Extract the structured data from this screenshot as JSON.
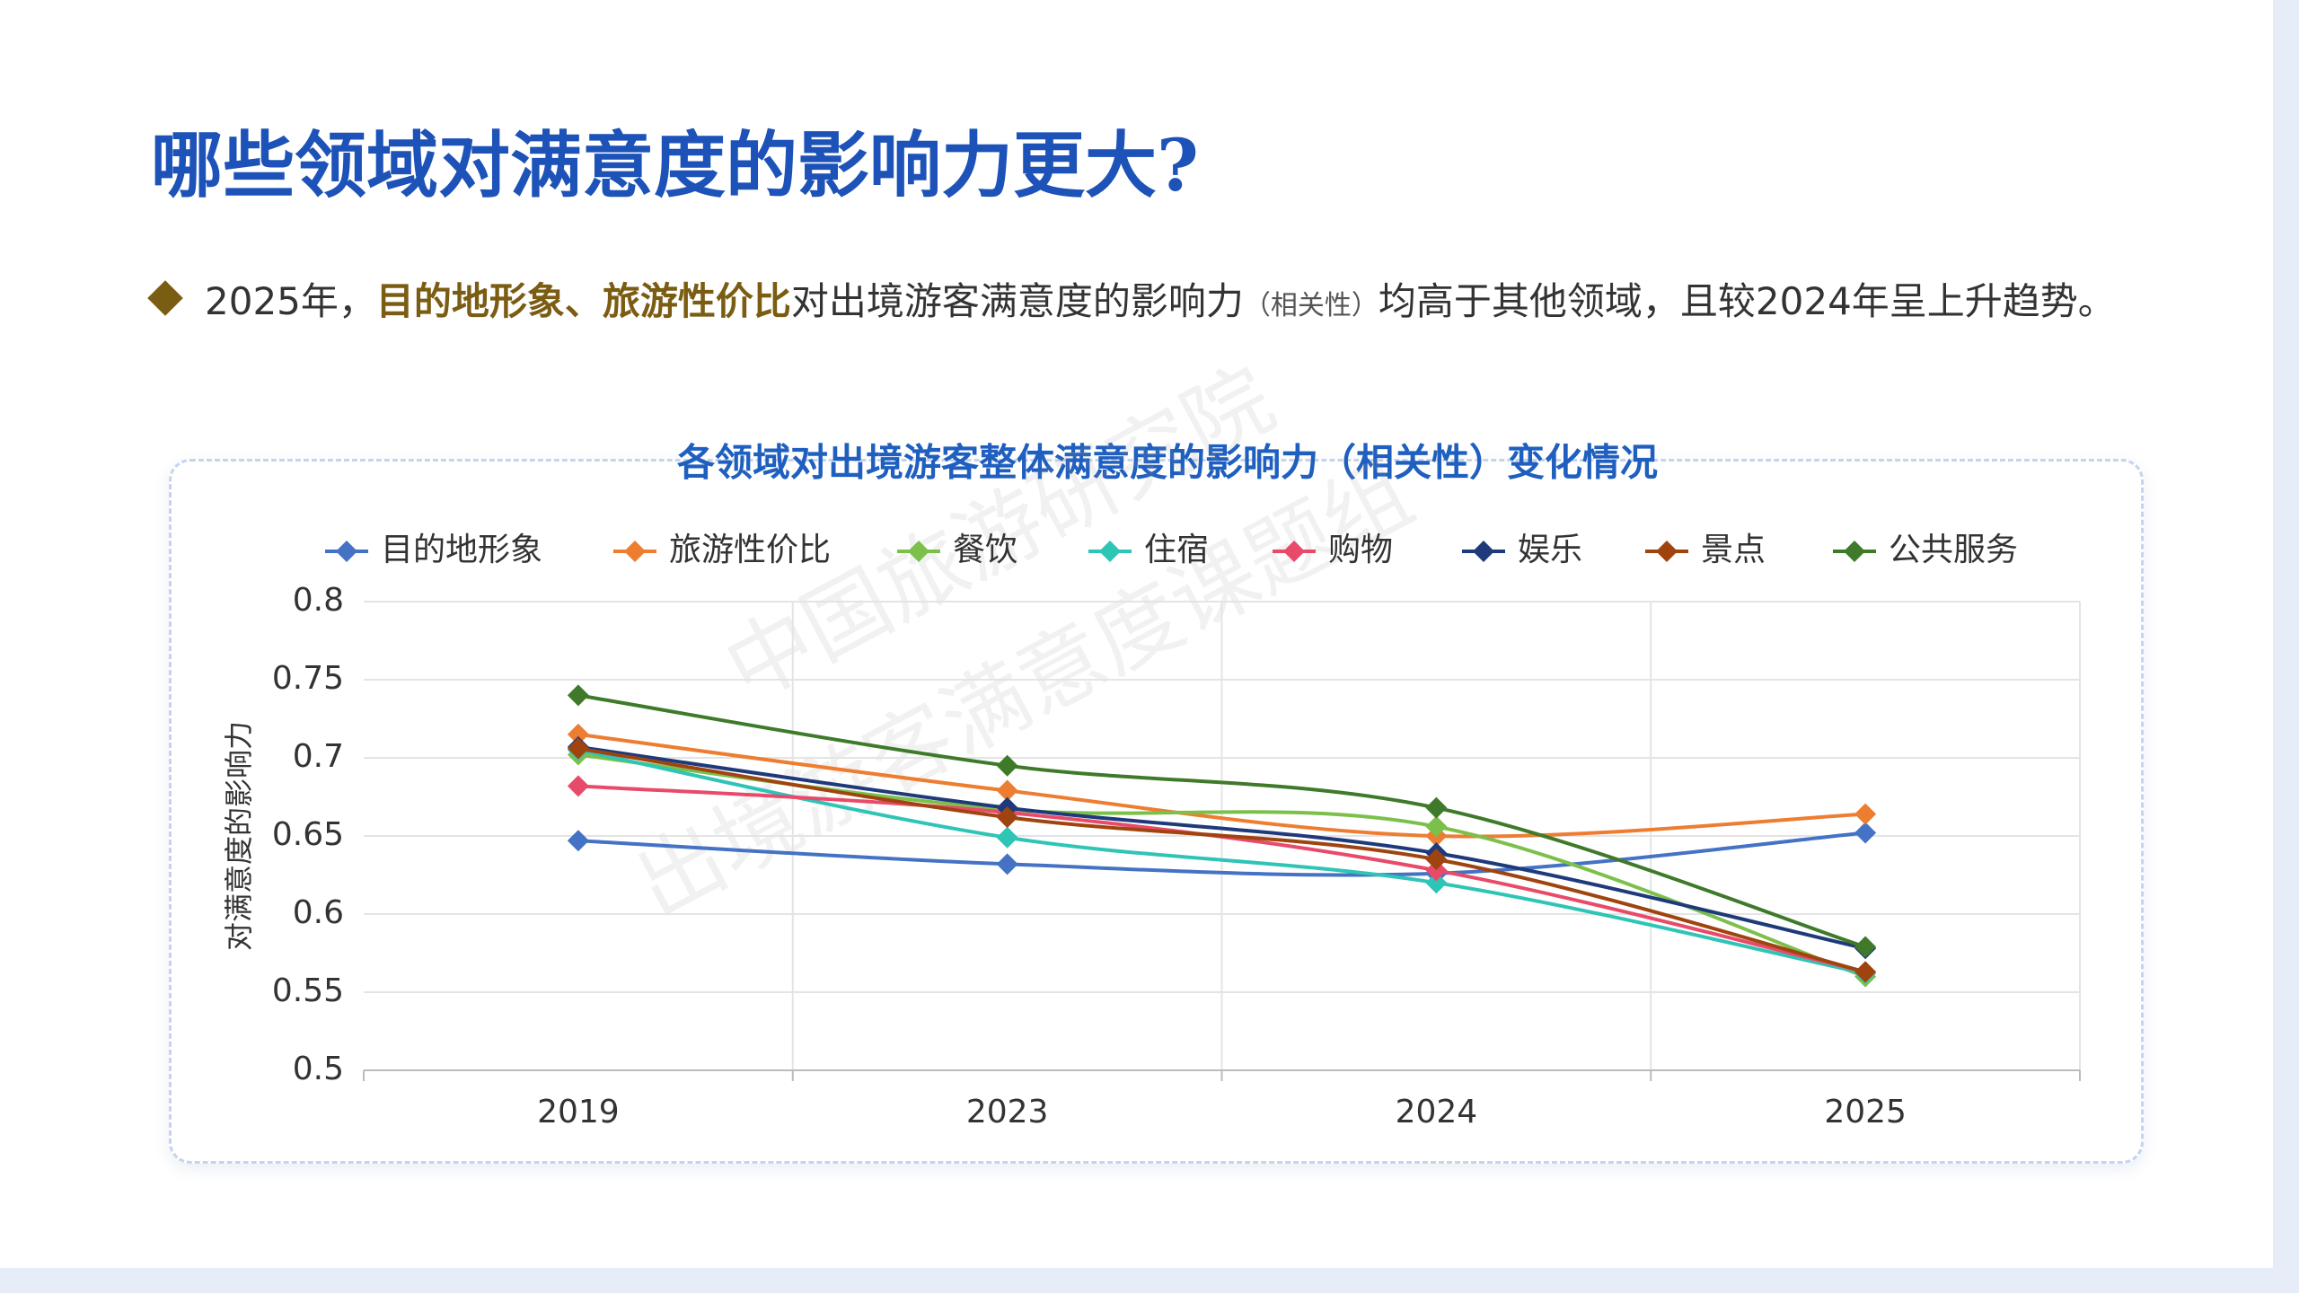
{
  "header": {
    "title": "哪些领域对满意度的影响力更大?",
    "bullet": [
      "2025年，",
      "目的地形象、旅游性价比",
      "对出境游客满意度的影响力",
      "（相关性）",
      "均高于其他领域，且较2024年呈上升趋势。"
    ]
  },
  "watermark": [
    "中国旅游研究院",
    "出境游客满意度课题组"
  ],
  "chart_data": {
    "type": "line",
    "title": "各领域对出境游客整体满意度的影响力（相关性）变化情况",
    "y_label": "对满意度的影响力",
    "categories": [
      "2019",
      "2023",
      "2024",
      "2025"
    ],
    "ylim": [
      0.5,
      0.8
    ],
    "yticks": [
      0.5,
      0.55,
      0.6,
      0.65,
      0.7,
      0.75,
      0.8
    ],
    "grid": true,
    "legend": "top",
    "series": [
      {
        "name": "目的地形象",
        "color": "#4472c4",
        "values": [
          0.647,
          0.632,
          0.626,
          0.652
        ]
      },
      {
        "name": "旅游性价比",
        "color": "#ed7d31",
        "values": [
          0.715,
          0.679,
          0.65,
          0.664
        ]
      },
      {
        "name": "餐饮",
        "color": "#7cc04b",
        "values": [
          0.702,
          0.667,
          0.656,
          0.56
        ]
      },
      {
        "name": "住宿",
        "color": "#2ec4b6",
        "values": [
          0.705,
          0.649,
          0.62,
          0.562
        ]
      },
      {
        "name": "购物",
        "color": "#e84a6a",
        "values": [
          0.682,
          0.665,
          0.628,
          0.563
        ]
      },
      {
        "name": "娱乐",
        "color": "#1f3a7a",
        "values": [
          0.707,
          0.668,
          0.639,
          0.578
        ]
      },
      {
        "name": "景点",
        "color": "#a0440f",
        "values": [
          0.706,
          0.662,
          0.635,
          0.563
        ]
      },
      {
        "name": "公共服务",
        "color": "#3f7a2a",
        "values": [
          0.74,
          0.695,
          0.668,
          0.579
        ]
      }
    ]
  }
}
